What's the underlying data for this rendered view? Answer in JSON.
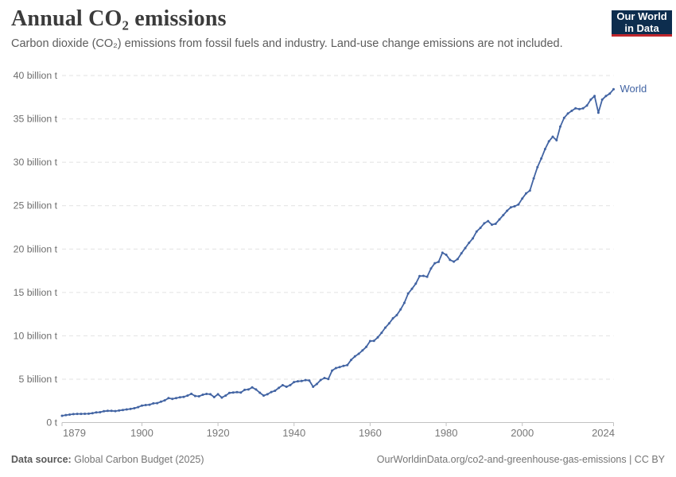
{
  "header": {
    "title": "Annual CO₂ emissions",
    "subtitle": "Carbon dioxide (CO₂) emissions from fossil fuels and industry. Land-use change emissions are not included.",
    "logo": {
      "line1": "Our World",
      "line2": "in Data"
    }
  },
  "footer": {
    "source_label": "Data source:",
    "source_value": "Global Carbon Budget (2025)",
    "link": "OurWorldinData.org/co2-and-greenhouse-gas-emissions | CC BY"
  },
  "colors": {
    "series_blue": "#4264a3",
    "logo_bg": "#0d2d4e",
    "logo_accent": "#c0262c",
    "grid": "#e2e2e2",
    "axis": "#c2c2c2",
    "title_text": "#3b3b3b",
    "subtitle_text": "#5c5c5c",
    "tick_text": "#6e6e6e"
  },
  "chart_data": {
    "type": "line",
    "title": "Annual CO₂ emissions",
    "xlabel": "",
    "ylabel": "",
    "unit": "billion t",
    "xlim": [
      1879,
      2024
    ],
    "ylim": [
      0,
      40
    ],
    "grid": "horizontal-dashed",
    "legend_position": "end-of-line",
    "x_ticks": [
      1879,
      1900,
      1920,
      1940,
      1960,
      1980,
      2000,
      2024
    ],
    "y_ticks": [
      {
        "value": 0,
        "label": "0 t"
      },
      {
        "value": 5,
        "label": "5 billion t"
      },
      {
        "value": 10,
        "label": "10 billion t"
      },
      {
        "value": 15,
        "label": "15 billion t"
      },
      {
        "value": 20,
        "label": "20 billion t"
      },
      {
        "value": 25,
        "label": "25 billion t"
      },
      {
        "value": 30,
        "label": "30 billion t"
      },
      {
        "value": 35,
        "label": "35 billion t"
      },
      {
        "value": 40,
        "label": "40 billion t"
      }
    ],
    "series": [
      {
        "name": "World",
        "color": "#4264a3",
        "x": [
          1879,
          1880,
          1881,
          1882,
          1883,
          1884,
          1885,
          1886,
          1887,
          1888,
          1889,
          1890,
          1891,
          1892,
          1893,
          1894,
          1895,
          1896,
          1897,
          1898,
          1899,
          1900,
          1901,
          1902,
          1903,
          1904,
          1905,
          1906,
          1907,
          1908,
          1909,
          1910,
          1911,
          1912,
          1913,
          1914,
          1915,
          1916,
          1917,
          1918,
          1919,
          1920,
          1921,
          1922,
          1923,
          1924,
          1925,
          1926,
          1927,
          1928,
          1929,
          1930,
          1931,
          1932,
          1933,
          1934,
          1935,
          1936,
          1937,
          1938,
          1939,
          1940,
          1941,
          1942,
          1943,
          1944,
          1945,
          1946,
          1947,
          1948,
          1949,
          1950,
          1951,
          1952,
          1953,
          1954,
          1955,
          1956,
          1957,
          1958,
          1959,
          1960,
          1961,
          1962,
          1963,
          1964,
          1965,
          1966,
          1967,
          1968,
          1969,
          1970,
          1971,
          1972,
          1973,
          1974,
          1975,
          1976,
          1977,
          1978,
          1979,
          1980,
          1981,
          1982,
          1983,
          1984,
          1985,
          1986,
          1987,
          1988,
          1989,
          1990,
          1991,
          1992,
          1993,
          1994,
          1995,
          1996,
          1997,
          1998,
          1999,
          2000,
          2001,
          2002,
          2003,
          2004,
          2005,
          2006,
          2007,
          2008,
          2009,
          2010,
          2011,
          2012,
          2013,
          2014,
          2015,
          2016,
          2017,
          2018,
          2019,
          2020,
          2021,
          2022,
          2023,
          2024
        ],
        "values": [
          0.78,
          0.86,
          0.92,
          0.97,
          1.0,
          1.0,
          1.01,
          1.02,
          1.08,
          1.16,
          1.19,
          1.3,
          1.35,
          1.35,
          1.32,
          1.38,
          1.45,
          1.51,
          1.57,
          1.65,
          1.78,
          1.95,
          2.02,
          2.05,
          2.21,
          2.24,
          2.4,
          2.56,
          2.81,
          2.72,
          2.81,
          2.91,
          2.96,
          3.11,
          3.31,
          3.06,
          3.02,
          3.21,
          3.3,
          3.26,
          2.93,
          3.26,
          2.88,
          3.11,
          3.41,
          3.46,
          3.5,
          3.46,
          3.77,
          3.81,
          4.05,
          3.81,
          3.44,
          3.11,
          3.26,
          3.52,
          3.67,
          4.0,
          4.31,
          4.12,
          4.32,
          4.66,
          4.76,
          4.78,
          4.89,
          4.85,
          4.12,
          4.44,
          4.9,
          5.13,
          5.01,
          5.99,
          6.28,
          6.39,
          6.53,
          6.62,
          7.22,
          7.62,
          7.93,
          8.31,
          8.72,
          9.39,
          9.42,
          9.81,
          10.35,
          10.94,
          11.43,
          12.01,
          12.38,
          13.03,
          13.79,
          14.86,
          15.41,
          16.01,
          16.88,
          16.91,
          16.81,
          17.76,
          18.36,
          18.52,
          19.57,
          19.34,
          18.75,
          18.55,
          18.84,
          19.51,
          20.11,
          20.72,
          21.22,
          22.02,
          22.44,
          22.96,
          23.22,
          22.81,
          22.91,
          23.41,
          23.91,
          24.41,
          24.82,
          24.93,
          25.14,
          25.82,
          26.41,
          26.74,
          28.14,
          29.44,
          30.43,
          31.52,
          32.41,
          32.94,
          32.54,
          34.11,
          35.12,
          35.62,
          35.93,
          36.22,
          36.12,
          36.22,
          36.54,
          37.22,
          37.64,
          35.72,
          37.22,
          37.64,
          37.91,
          38.42
        ]
      }
    ]
  }
}
